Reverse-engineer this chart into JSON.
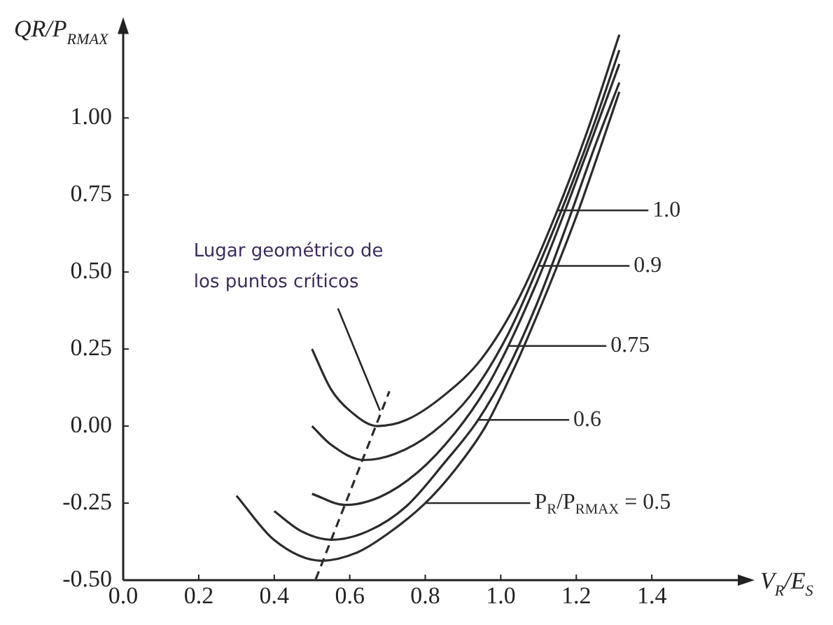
{
  "chart_data": {
    "type": "line",
    "xlabel": "V$_{R}$/E$_{S}$",
    "ylabel": "QR/P$_{RMAX}$",
    "xlim": [
      0,
      1.65
    ],
    "ylim": [
      -0.5,
      1.3
    ],
    "xticks": [
      {
        "value": 0,
        "label": "0.0"
      },
      {
        "value": 0.2,
        "label": "0.2"
      },
      {
        "value": 0.4,
        "label": "0.4"
      },
      {
        "value": 0.6,
        "label": "0.6"
      },
      {
        "value": 0.8,
        "label": "0.8"
      },
      {
        "value": 1,
        "label": "1.0"
      },
      {
        "value": 1.2,
        "label": "1.2"
      },
      {
        "value": 1.4,
        "label": "1.4"
      }
    ],
    "yticks": [
      {
        "value": -0.5,
        "label": "-0.50"
      },
      {
        "value": -0.25,
        "label": "-0.25"
      },
      {
        "value": 0,
        "label": "0.00"
      },
      {
        "value": 0.25,
        "label": "0.25"
      },
      {
        "value": 0.5,
        "label": "0.50"
      },
      {
        "value": 0.75,
        "label": "0.75"
      },
      {
        "value": 1,
        "label": "1.00"
      }
    ],
    "grid": false,
    "legend": "right",
    "marker": "none",
    "series": [
      {
        "name": "1.0",
        "color": "#2b2b2b",
        "x": [
          0.5,
          0.55,
          0.6,
          0.674,
          0.75,
          0.85,
          0.95,
          1.05,
          1.15,
          1.23,
          1.314
        ],
        "values": [
          0.25,
          0.12,
          0.05,
          0.0,
          0.02,
          0.1,
          0.22,
          0.42,
          0.7,
          0.96,
          1.27
        ]
      },
      {
        "name": "0.9",
        "color": "#2b2b2b",
        "x": [
          0.5,
          0.55,
          0.637,
          0.72,
          0.82,
          0.92,
          1.02,
          1.1,
          1.18,
          1.25,
          1.314
        ],
        "values": [
          0.0,
          -0.06,
          -0.11,
          -0.09,
          -0.02,
          0.1,
          0.3,
          0.52,
          0.76,
          0.99,
          1.22
        ]
      },
      {
        "name": "0.75",
        "color": "#2b2b2b",
        "x": [
          0.5,
          0.588,
          0.68,
          0.78,
          0.88,
          0.96,
          1.02,
          1.1,
          1.18,
          1.25,
          1.314
        ],
        "values": [
          -0.22,
          -0.256,
          -0.23,
          -0.15,
          -0.02,
          0.12,
          0.26,
          0.48,
          0.73,
          0.96,
          1.175
        ]
      },
      {
        "name": "0.6",
        "color": "#2b2b2b",
        "x": [
          0.4,
          0.47,
          0.551,
          0.65,
          0.75,
          0.85,
          0.94,
          1.02,
          1.1,
          1.18,
          1.25,
          1.314
        ],
        "values": [
          -0.276,
          -0.34,
          -0.369,
          -0.34,
          -0.26,
          -0.12,
          0.02,
          0.19,
          0.41,
          0.67,
          0.91,
          1.115
        ]
      },
      {
        "name": "P$_{R}$/P$_{RMAX}$ = 0.5",
        "color": "#2b2b2b",
        "x": [
          0.3,
          0.4,
          0.526,
          0.62,
          0.7,
          0.8,
          0.88,
          0.96,
          1.04,
          1.12,
          1.2,
          1.26,
          1.314
        ],
        "values": [
          -0.226,
          -0.37,
          -0.437,
          -0.41,
          -0.35,
          -0.25,
          -0.14,
          0.0,
          0.2,
          0.43,
          0.68,
          0.89,
          1.085
        ]
      },
      {
        "color": "#2b2b2b",
        "line_style": "dashed",
        "x": [
          0.51,
          0.705
        ],
        "values": [
          -0.497,
          0.113
        ]
      }
    ],
    "annotations": [
      {
        "text": "Lugar geométrico de los puntos críticos",
        "x": 0.68,
        "y": 0.05
      }
    ]
  }
}
